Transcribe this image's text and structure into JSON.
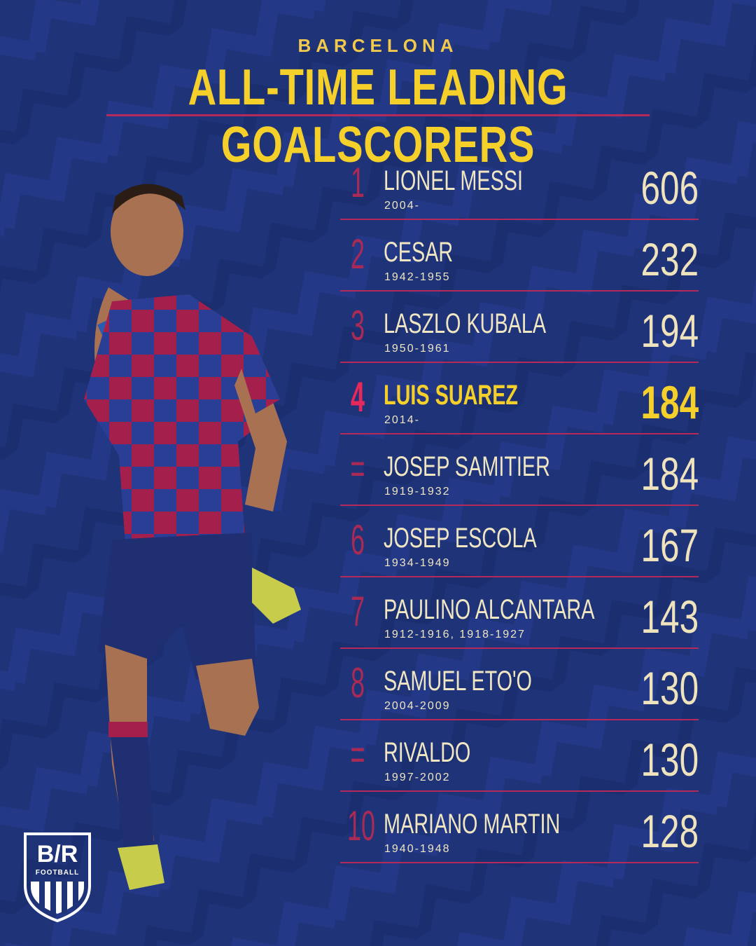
{
  "header": {
    "club": "BARCELONA",
    "title": "ALL-TIME LEADING GOALSCORERS"
  },
  "rows": [
    {
      "rank": "1",
      "name": "LIONEL MESSI",
      "years": "2004-",
      "goals": "606"
    },
    {
      "rank": "2",
      "name": "CESAR",
      "years": "1942-1955",
      "goals": "232"
    },
    {
      "rank": "3",
      "name": "LASZLO KUBALA",
      "years": "1950-1961",
      "goals": "194"
    },
    {
      "rank": "4",
      "name": "LUIS SUAREZ",
      "years": "2014-",
      "goals": "184"
    },
    {
      "rank": "=",
      "name": "JOSEP SAMITIER",
      "years": "1919-1932",
      "goals": "184"
    },
    {
      "rank": "6",
      "name": "JOSEP ESCOLA",
      "years": "1934-1949",
      "goals": "167"
    },
    {
      "rank": "7",
      "name": "PAULINO ALCANTARA",
      "years": "1912-1916, 1918-1927",
      "goals": "143"
    },
    {
      "rank": "8",
      "name": "SAMUEL ETO'O",
      "years": "2004-2009",
      "goals": "130"
    },
    {
      "rank": "=",
      "name": "RIVALDO",
      "years": "1997-2002",
      "goals": "130"
    },
    {
      "rank": "10",
      "name": "MARIANO MARTIN",
      "years": "1940-1948",
      "goals": "128"
    }
  ],
  "logo": {
    "brand": "B/R",
    "sub": "FOOTBALL"
  },
  "colors": {
    "background": "#1e3378",
    "accent_gold": "#f5d02b",
    "accent_maroon": "#b52a58",
    "text_cream": "#f0e6c2"
  },
  "icons": {
    "player": "player-celebration-silhouette",
    "logo": "br-football-shield-icon"
  }
}
